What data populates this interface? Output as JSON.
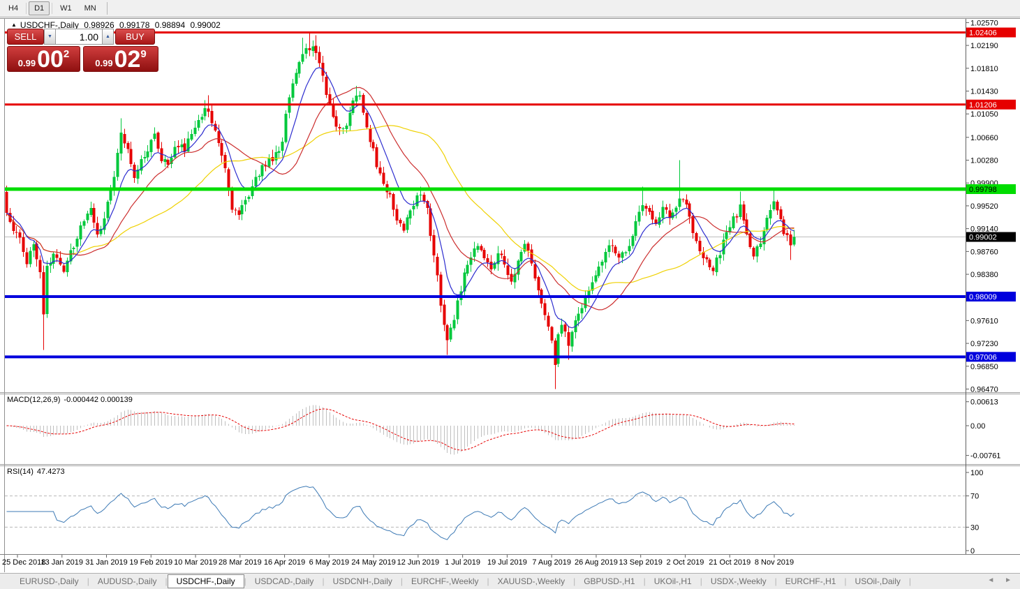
{
  "toolbar": {
    "timeframes": [
      {
        "label": "H4",
        "active": false
      },
      {
        "label": "D1",
        "active": true
      },
      {
        "label": "W1",
        "active": false
      },
      {
        "label": "MN",
        "active": false
      }
    ]
  },
  "chart": {
    "header": {
      "symbol_arrow": "▲",
      "symbol": "USDCHF-,Daily",
      "open": "0.98926",
      "high": "0.99178",
      "low": "0.98894",
      "close": "0.99002"
    },
    "trade_panel": {
      "sell_label": "SELL",
      "buy_label": "BUY",
      "volume": "1.00",
      "spin_down_icon": "▼",
      "spin_up_icon": "▲",
      "sell_price": {
        "base": "0.99",
        "big": "00",
        "sup": "2"
      },
      "buy_price": {
        "base": "0.99",
        "big": "02",
        "sup": "9"
      }
    },
    "y_axis": {
      "ticks": [
        1.0257,
        1.0219,
        1.0181,
        1.0143,
        1.0105,
        1.0066,
        1.0028,
        0.999,
        0.9952,
        0.9914,
        0.9876,
        0.9838,
        0.9761,
        0.9723,
        0.9685,
        0.9647
      ]
    },
    "hlines": [
      {
        "value": 1.02406,
        "label": "1.02406",
        "color": "#e60000",
        "width": 3,
        "text_color": "#ffffff"
      },
      {
        "value": 1.01206,
        "label": "1.01206",
        "color": "#e60000",
        "width": 3,
        "text_color": "#ffffff"
      },
      {
        "value": 0.99798,
        "label": "0.99798",
        "color": "#00dd00",
        "width": 5,
        "text_color": "#000000"
      },
      {
        "value": 0.98009,
        "label": "0.98009",
        "color": "#0000dd",
        "width": 4,
        "text_color": "#ffffff"
      },
      {
        "value": 0.97006,
        "label": "0.97006",
        "color": "#0000dd",
        "width": 4,
        "text_color": "#ffffff"
      }
    ],
    "price_line": {
      "value": 0.99002,
      "label": "0.99002",
      "line_color": "#bdbdbd",
      "label_bg": "#000000",
      "label_fg": "#ffffff"
    },
    "x_axis": {
      "dates": [
        "25 Dec 2018",
        "13 Jan 2019",
        "31 Jan 2019",
        "19 Feb 2019",
        "10 Mar 2019",
        "28 Mar 2019",
        "16 Apr 2019",
        "6 May 2019",
        "24 May 2019",
        "12 Jun 2019",
        "1 Jul 2019",
        "19 Jul 2019",
        "7 Aug 2019",
        "26 Aug 2019",
        "13 Sep 2019",
        "2 Oct 2019",
        "21 Oct 2019",
        "8 Nov 2019"
      ]
    },
    "candles": {
      "count": 235,
      "seed": 12,
      "first_open": 0.9975,
      "last_close": 0.99002,
      "up_color": "#00c83c",
      "down_color": "#e60000",
      "anchors": [
        [
          0,
          0.994
        ],
        [
          2,
          0.9916
        ],
        [
          3,
          0.9906
        ],
        [
          5,
          0.988
        ],
        [
          6,
          0.9862
        ],
        [
          8,
          0.9886
        ],
        [
          10,
          0.9838
        ],
        [
          11,
          0.9778
        ],
        [
          12,
          0.9846
        ],
        [
          14,
          0.9872
        ],
        [
          17,
          0.9842
        ],
        [
          20,
          0.9886
        ],
        [
          23,
          0.9928
        ],
        [
          25,
          0.9952
        ],
        [
          27,
          0.9906
        ],
        [
          29,
          0.9934
        ],
        [
          30,
          0.9962
        ],
        [
          32,
          1.0005
        ],
        [
          34,
          1.0072
        ],
        [
          36,
          1.0046
        ],
        [
          38,
          1.0002
        ],
        [
          41,
          1.0038
        ],
        [
          44,
          1.0072
        ],
        [
          46,
          1.0032
        ],
        [
          48,
          1.0022
        ],
        [
          50,
          1.0052
        ],
        [
          53,
          1.0048
        ],
        [
          56,
          1.0086
        ],
        [
          58,
          1.0106
        ],
        [
          60,
          1.0116
        ],
        [
          62,
          1.0076
        ],
        [
          65,
          1.0016
        ],
        [
          67,
          0.9952
        ],
        [
          69,
          0.9936
        ],
        [
          71,
          0.9958
        ],
        [
          74,
          0.9996
        ],
        [
          77,
          1.0022
        ],
        [
          80,
          1.0036
        ],
        [
          82,
          1.0062
        ],
        [
          84,
          1.0136
        ],
        [
          86,
          1.0176
        ],
        [
          88,
          1.0206
        ],
        [
          90,
          1.0216
        ],
        [
          92,
          1.0206
        ],
        [
          94,
          1.0162
        ],
        [
          96,
          1.0122
        ],
        [
          97,
          1.01
        ],
        [
          99,
          1.0076
        ],
        [
          101,
          1.0092
        ],
        [
          103,
          1.0126
        ],
        [
          105,
          1.0136
        ],
        [
          107,
          1.0086
        ],
        [
          110,
          1.0022
        ],
        [
          112,
          0.999
        ],
        [
          114,
          0.9968
        ],
        [
          116,
          0.993
        ],
        [
          118,
          0.9912
        ],
        [
          120,
          0.9946
        ],
        [
          122,
          0.9968
        ],
        [
          123,
          0.9976
        ],
        [
          125,
          0.9946
        ],
        [
          127,
          0.987
        ],
        [
          129,
          0.979
        ],
        [
          131,
          0.9726
        ],
        [
          133,
          0.9762
        ],
        [
          135,
          0.9816
        ],
        [
          136,
          0.9846
        ],
        [
          138,
          0.9872
        ],
        [
          140,
          0.989
        ],
        [
          142,
          0.9862
        ],
        [
          144,
          0.9846
        ],
        [
          146,
          0.988
        ],
        [
          148,
          0.9856
        ],
        [
          150,
          0.9822
        ],
        [
          152,
          0.9866
        ],
        [
          154,
          0.989
        ],
        [
          156,
          0.9862
        ],
        [
          158,
          0.9812
        ],
        [
          160,
          0.9768
        ],
        [
          162,
          0.9726
        ],
        [
          163,
          0.9686
        ],
        [
          164,
          0.9736
        ],
        [
          165,
          0.9758
        ],
        [
          167,
          0.9716
        ],
        [
          169,
          0.9762
        ],
        [
          171,
          0.9788
        ],
        [
          173,
          0.9816
        ],
        [
          175,
          0.9838
        ],
        [
          176,
          0.9846
        ],
        [
          178,
          0.9872
        ],
        [
          180,
          0.9888
        ],
        [
          182,
          0.9862
        ],
        [
          184,
          0.9878
        ],
        [
          186,
          0.9906
        ],
        [
          188,
          0.9942
        ],
        [
          189,
          0.9958
        ],
        [
          191,
          0.994
        ],
        [
          193,
          0.9918
        ],
        [
          195,
          0.9948
        ],
        [
          197,
          0.9932
        ],
        [
          199,
          0.995
        ],
        [
          200,
          0.9964
        ],
        [
          202,
          0.9952
        ],
        [
          204,
          0.9912
        ],
        [
          206,
          0.988
        ],
        [
          208,
          0.9858
        ],
        [
          210,
          0.9848
        ],
        [
          212,
          0.9872
        ],
        [
          214,
          0.9906
        ],
        [
          216,
          0.9928
        ],
        [
          218,
          0.995
        ],
        [
          220,
          0.9906
        ],
        [
          222,
          0.9868
        ],
        [
          224,
          0.9888
        ],
        [
          226,
          0.9936
        ],
        [
          228,
          0.9966
        ],
        [
          229,
          0.995
        ],
        [
          231,
          0.9912
        ],
        [
          233,
          0.9886
        ],
        [
          234,
          0.99002
        ]
      ],
      "wicks": [
        {
          "bar": 11,
          "low": 0.9712
        },
        {
          "bar": 34,
          "high": 1.0098
        },
        {
          "bar": 59,
          "high": 1.0128
        },
        {
          "bar": 60,
          "high": 1.0136
        },
        {
          "bar": 88,
          "high": 1.0232
        },
        {
          "bar": 90,
          "high": 1.0241
        },
        {
          "bar": 92,
          "high": 1.0236
        },
        {
          "bar": 104,
          "high": 1.0152
        },
        {
          "bar": 123,
          "high": 0.9984
        },
        {
          "bar": 131,
          "low": 0.9704
        },
        {
          "bar": 163,
          "low": 0.9647
        },
        {
          "bar": 167,
          "low": 0.9696
        },
        {
          "bar": 189,
          "high": 0.9984
        },
        {
          "bar": 200,
          "high": 1.0028
        },
        {
          "bar": 218,
          "high": 0.9976
        },
        {
          "bar": 228,
          "high": 0.9982
        },
        {
          "bar": 233,
          "low": 0.9862
        }
      ]
    },
    "moving_averages": [
      {
        "method": "ema",
        "period": 9,
        "color": "#2d2dcf"
      },
      {
        "method": "sma",
        "period": 21,
        "color": "#cc2e2e"
      },
      {
        "method": "sma",
        "period": 44,
        "color": "#efd102"
      }
    ]
  },
  "macd": {
    "label": "MACD(12,26,9)",
    "values": "-0.000442 0.000139",
    "fast": 12,
    "slow": 26,
    "signal": 9,
    "ticks": [
      {
        "v": 0.00613,
        "t": "0.00613"
      },
      {
        "v": 0,
        "t": "0.00"
      },
      {
        "v": -0.00761,
        "t": "-0.00761"
      }
    ],
    "hist_color": "#bfbfbf",
    "signal_color": "#e60000"
  },
  "rsi": {
    "label": "RSI(14)",
    "value": "47.4273",
    "period": 14,
    "ticks": [
      100,
      70,
      30,
      0
    ],
    "levels": [
      70,
      30
    ],
    "color": "#3d7ab5"
  },
  "tabs": {
    "items": [
      {
        "label": "EURUSD-,Daily",
        "active": false
      },
      {
        "label": "AUDUSD-,Daily",
        "active": false
      },
      {
        "label": "USDCHF-,Daily",
        "active": true
      },
      {
        "label": "USDCAD-,Daily",
        "active": false
      },
      {
        "label": "USDCNH-,Daily",
        "active": false
      },
      {
        "label": "EURCHF-,Weekly",
        "active": false
      },
      {
        "label": "XAUUSD-,Weekly",
        "active": false
      },
      {
        "label": "GBPUSD-,H1",
        "active": false
      },
      {
        "label": "UKOil-,H1",
        "active": false
      },
      {
        "label": "USDX-,Weekly",
        "active": false
      },
      {
        "label": "EURCHF-,H1",
        "active": false
      },
      {
        "label": "USOil-,Daily",
        "active": false
      }
    ],
    "scroll_left": "◄",
    "scroll_right": "►"
  }
}
